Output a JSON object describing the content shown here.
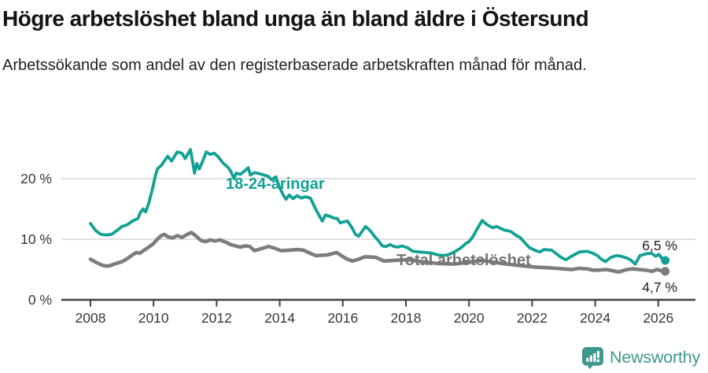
{
  "title": "Högre arbetslöshet bland unga än bland äldre i Östersund",
  "subtitle": "Arbetssökande som andel av den registerbaserade arbetskraften månad för månad.",
  "branding": {
    "name": "Newsworthy",
    "color": "#3f9790"
  },
  "chart_data": {
    "type": "line",
    "title": "Högre arbetslöshet bland unga än bland äldre i Östersund",
    "subtitle": "Arbetssökande som andel av den registerbaserade arbetskraften månad för månad.",
    "grid": true,
    "legend_position": "inline-labels",
    "style": {
      "grid_color": "#d9d9d9",
      "axis_color": "#3f3f3f",
      "tick_label_color": "#363636",
      "background": "#ffffff"
    },
    "x_axis": {
      "range": [
        2007.9,
        2026.6
      ],
      "ticks": [
        {
          "value": 2008,
          "label": "2008"
        },
        {
          "value": 2010,
          "label": "2010"
        },
        {
          "value": 2012,
          "label": "2012"
        },
        {
          "value": 2014,
          "label": "2014"
        },
        {
          "value": 2016,
          "label": "2016"
        },
        {
          "value": 2018,
          "label": "2018"
        },
        {
          "value": 2020,
          "label": "2020"
        },
        {
          "value": 2022,
          "label": "2022"
        },
        {
          "value": 2024,
          "label": "2024"
        },
        {
          "value": 2026,
          "label": "2026"
        }
      ]
    },
    "y_axis": {
      "range": [
        0,
        26
      ],
      "unit": "%",
      "gridlines": [
        10,
        20
      ],
      "ticks": [
        {
          "value": 0,
          "label": "0 %"
        },
        {
          "value": 10,
          "label": "10 %"
        },
        {
          "value": 20,
          "label": "20 %"
        }
      ]
    },
    "series": [
      {
        "name": "18-24-åringar",
        "color": "#12a195",
        "end_label": "6,5 %",
        "end_value": 6.5,
        "points": [
          [
            2008.0,
            12.6
          ],
          [
            2008.17,
            11.4
          ],
          [
            2008.33,
            10.8
          ],
          [
            2008.5,
            10.7
          ],
          [
            2008.67,
            10.8
          ],
          [
            2008.83,
            11.4
          ],
          [
            2009.0,
            12.1
          ],
          [
            2009.17,
            12.4
          ],
          [
            2009.33,
            13.0
          ],
          [
            2009.5,
            13.4
          ],
          [
            2009.58,
            14.4
          ],
          [
            2009.67,
            15.0
          ],
          [
            2009.75,
            14.5
          ],
          [
            2009.85,
            16.0
          ],
          [
            2009.95,
            18.0
          ],
          [
            2010.05,
            20.3
          ],
          [
            2010.12,
            21.6
          ],
          [
            2010.25,
            22.2
          ],
          [
            2010.45,
            23.7
          ],
          [
            2010.57,
            22.9
          ],
          [
            2010.75,
            24.4
          ],
          [
            2010.9,
            24.2
          ],
          [
            2011.0,
            23.3
          ],
          [
            2011.17,
            24.8
          ],
          [
            2011.3,
            20.9
          ],
          [
            2011.37,
            22.5
          ],
          [
            2011.45,
            21.6
          ],
          [
            2011.55,
            22.8
          ],
          [
            2011.67,
            24.4
          ],
          [
            2011.8,
            24.0
          ],
          [
            2011.92,
            24.2
          ],
          [
            2012.05,
            23.6
          ],
          [
            2012.2,
            22.6
          ],
          [
            2012.37,
            21.8
          ],
          [
            2012.45,
            21.2
          ],
          [
            2012.55,
            20.0
          ],
          [
            2012.62,
            20.9
          ],
          [
            2012.75,
            20.7
          ],
          [
            2012.87,
            21.2
          ],
          [
            2013.0,
            21.8
          ],
          [
            2013.07,
            20.6
          ],
          [
            2013.2,
            21.0
          ],
          [
            2013.37,
            20.8
          ],
          [
            2013.62,
            20.4
          ],
          [
            2013.75,
            19.8
          ],
          [
            2013.87,
            20.3
          ],
          [
            2014.0,
            18.5
          ],
          [
            2014.12,
            17.2
          ],
          [
            2014.2,
            16.6
          ],
          [
            2014.3,
            17.3
          ],
          [
            2014.42,
            16.7
          ],
          [
            2014.55,
            17.2
          ],
          [
            2014.67,
            16.8
          ],
          [
            2014.82,
            17.0
          ],
          [
            2014.97,
            16.8
          ],
          [
            2015.12,
            15.2
          ],
          [
            2015.22,
            14.2
          ],
          [
            2015.35,
            13.0
          ],
          [
            2015.45,
            14.0
          ],
          [
            2015.57,
            13.8
          ],
          [
            2015.72,
            13.5
          ],
          [
            2015.82,
            13.4
          ],
          [
            2015.92,
            12.7
          ],
          [
            2016.05,
            12.9
          ],
          [
            2016.15,
            13.0
          ],
          [
            2016.3,
            11.8
          ],
          [
            2016.4,
            10.8
          ],
          [
            2016.5,
            10.5
          ],
          [
            2016.57,
            11.0
          ],
          [
            2016.72,
            12.1
          ],
          [
            2016.87,
            11.4
          ],
          [
            2017.0,
            10.5
          ],
          [
            2017.12,
            9.8
          ],
          [
            2017.25,
            8.9
          ],
          [
            2017.37,
            8.8
          ],
          [
            2017.5,
            9.1
          ],
          [
            2017.62,
            8.8
          ],
          [
            2017.75,
            8.7
          ],
          [
            2017.87,
            8.9
          ],
          [
            2018.05,
            8.6
          ],
          [
            2018.22,
            8.0
          ],
          [
            2018.42,
            7.9
          ],
          [
            2018.62,
            7.8
          ],
          [
            2018.82,
            7.7
          ],
          [
            2019.02,
            7.4
          ],
          [
            2019.2,
            7.3
          ],
          [
            2019.37,
            7.5
          ],
          [
            2019.57,
            8.0
          ],
          [
            2019.75,
            8.6
          ],
          [
            2019.9,
            9.3
          ],
          [
            2020.0,
            9.6
          ],
          [
            2020.12,
            10.4
          ],
          [
            2020.27,
            11.8
          ],
          [
            2020.42,
            13.1
          ],
          [
            2020.57,
            12.4
          ],
          [
            2020.75,
            11.9
          ],
          [
            2020.87,
            12.1
          ],
          [
            2021.12,
            11.5
          ],
          [
            2021.32,
            11.3
          ],
          [
            2021.5,
            10.6
          ],
          [
            2021.62,
            10.3
          ],
          [
            2021.77,
            9.4
          ],
          [
            2021.92,
            8.6
          ],
          [
            2022.12,
            8.1
          ],
          [
            2022.25,
            7.9
          ],
          [
            2022.37,
            8.3
          ],
          [
            2022.62,
            8.2
          ],
          [
            2022.77,
            7.6
          ],
          [
            2022.92,
            7.0
          ],
          [
            2023.07,
            6.6
          ],
          [
            2023.25,
            7.2
          ],
          [
            2023.5,
            7.9
          ],
          [
            2023.75,
            8.0
          ],
          [
            2023.92,
            7.7
          ],
          [
            2024.07,
            7.3
          ],
          [
            2024.17,
            6.8
          ],
          [
            2024.32,
            6.3
          ],
          [
            2024.5,
            7.0
          ],
          [
            2024.67,
            7.3
          ],
          [
            2024.82,
            7.2
          ],
          [
            2025.0,
            6.9
          ],
          [
            2025.12,
            6.6
          ],
          [
            2025.27,
            5.9
          ],
          [
            2025.42,
            7.3
          ],
          [
            2025.62,
            7.6
          ],
          [
            2025.77,
            7.7
          ],
          [
            2025.92,
            7.2
          ],
          [
            2026.02,
            7.5
          ],
          [
            2026.12,
            6.8
          ],
          [
            2026.22,
            6.5
          ]
        ]
      },
      {
        "name": "Total arbetslöshet",
        "color": "#7d7d7d",
        "label_color": "#757575",
        "end_label": "4,7 %",
        "end_value": 4.7,
        "points": [
          [
            2008.0,
            6.7
          ],
          [
            2008.17,
            6.2
          ],
          [
            2008.33,
            5.8
          ],
          [
            2008.45,
            5.6
          ],
          [
            2008.6,
            5.6
          ],
          [
            2008.75,
            5.9
          ],
          [
            2009.0,
            6.3
          ],
          [
            2009.17,
            6.8
          ],
          [
            2009.33,
            7.4
          ],
          [
            2009.45,
            7.8
          ],
          [
            2009.57,
            7.7
          ],
          [
            2009.7,
            8.2
          ],
          [
            2009.85,
            8.7
          ],
          [
            2010.0,
            9.3
          ],
          [
            2010.12,
            10.0
          ],
          [
            2010.25,
            10.6
          ],
          [
            2010.35,
            10.8
          ],
          [
            2010.45,
            10.4
          ],
          [
            2010.6,
            10.2
          ],
          [
            2010.75,
            10.6
          ],
          [
            2010.9,
            10.3
          ],
          [
            2011.0,
            10.6
          ],
          [
            2011.1,
            10.9
          ],
          [
            2011.2,
            11.1
          ],
          [
            2011.35,
            10.5
          ],
          [
            2011.5,
            9.8
          ],
          [
            2011.65,
            9.6
          ],
          [
            2011.8,
            9.9
          ],
          [
            2011.95,
            9.7
          ],
          [
            2012.1,
            9.9
          ],
          [
            2012.3,
            9.5
          ],
          [
            2012.45,
            9.1
          ],
          [
            2012.6,
            8.9
          ],
          [
            2012.75,
            8.7
          ],
          [
            2012.9,
            8.9
          ],
          [
            2013.05,
            8.8
          ],
          [
            2013.2,
            8.1
          ],
          [
            2013.45,
            8.5
          ],
          [
            2013.65,
            8.8
          ],
          [
            2013.85,
            8.5
          ],
          [
            2014.05,
            8.1
          ],
          [
            2014.3,
            8.2
          ],
          [
            2014.55,
            8.3
          ],
          [
            2014.75,
            8.2
          ],
          [
            2015.0,
            7.6
          ],
          [
            2015.15,
            7.3
          ],
          [
            2015.5,
            7.4
          ],
          [
            2015.8,
            7.8
          ],
          [
            2016.1,
            6.8
          ],
          [
            2016.3,
            6.4
          ],
          [
            2016.5,
            6.7
          ],
          [
            2016.7,
            7.1
          ],
          [
            2017.05,
            7.0
          ],
          [
            2017.3,
            6.4
          ],
          [
            2017.6,
            6.5
          ],
          [
            2017.85,
            6.6
          ],
          [
            2018.1,
            6.6
          ],
          [
            2018.5,
            6.3
          ],
          [
            2019.0,
            6.0
          ],
          [
            2019.5,
            5.9
          ],
          [
            2020.0,
            6.2
          ],
          [
            2020.4,
            6.5
          ],
          [
            2020.8,
            6.2
          ],
          [
            2021.2,
            5.9
          ],
          [
            2021.7,
            5.6
          ],
          [
            2022.1,
            5.4
          ],
          [
            2022.5,
            5.3
          ],
          [
            2022.75,
            5.2
          ],
          [
            2023.0,
            5.1
          ],
          [
            2023.25,
            5.0
          ],
          [
            2023.5,
            5.2
          ],
          [
            2023.75,
            5.1
          ],
          [
            2023.92,
            4.9
          ],
          [
            2024.1,
            4.9
          ],
          [
            2024.35,
            5.0
          ],
          [
            2024.55,
            4.8
          ],
          [
            2024.75,
            4.6
          ],
          [
            2025.0,
            5.0
          ],
          [
            2025.2,
            5.1
          ],
          [
            2025.4,
            5.0
          ],
          [
            2025.6,
            4.9
          ],
          [
            2025.8,
            4.7
          ],
          [
            2025.95,
            5.0
          ],
          [
            2026.1,
            4.8
          ],
          [
            2026.22,
            4.7
          ]
        ]
      }
    ]
  }
}
